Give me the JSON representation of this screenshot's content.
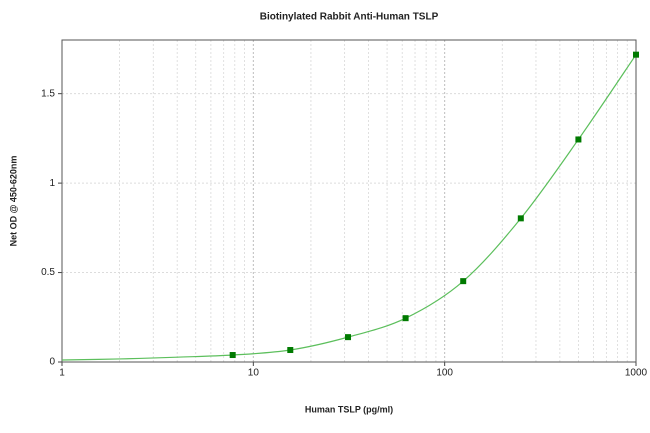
{
  "chart_data": {
    "type": "scatter",
    "title": "Biotinylated Rabbit Anti-Human TSLP",
    "x_label": "Human TSLP (pg/ml)",
    "y_label": "Net OD @ 450-620nm",
    "x": [
      7.8,
      15.6,
      31.25,
      62.5,
      125,
      250,
      500,
      1000
    ],
    "values": [
      0.039,
      0.067,
      0.139,
      0.245,
      0.452,
      0.803,
      1.244,
      1.718
    ],
    "color": "#007a00",
    "curve": {
      "x": [
        1,
        2,
        4,
        7.8,
        15.6,
        31.25,
        62.5,
        125,
        250,
        500,
        1000
      ],
      "values": [
        0.011,
        0.017,
        0.027,
        0.039,
        0.067,
        0.139,
        0.245,
        0.452,
        0.803,
        1.244,
        1.718
      ],
      "color": "#5cbf5c"
    },
    "x_log": true,
    "xlim": [
      1,
      1000
    ],
    "xticks": [
      1,
      10,
      100,
      1000
    ],
    "ylim": [
      0,
      1.8
    ],
    "yticks": [
      0,
      0.5,
      1,
      1.5
    ],
    "grid": true,
    "minor_grid": true
  }
}
